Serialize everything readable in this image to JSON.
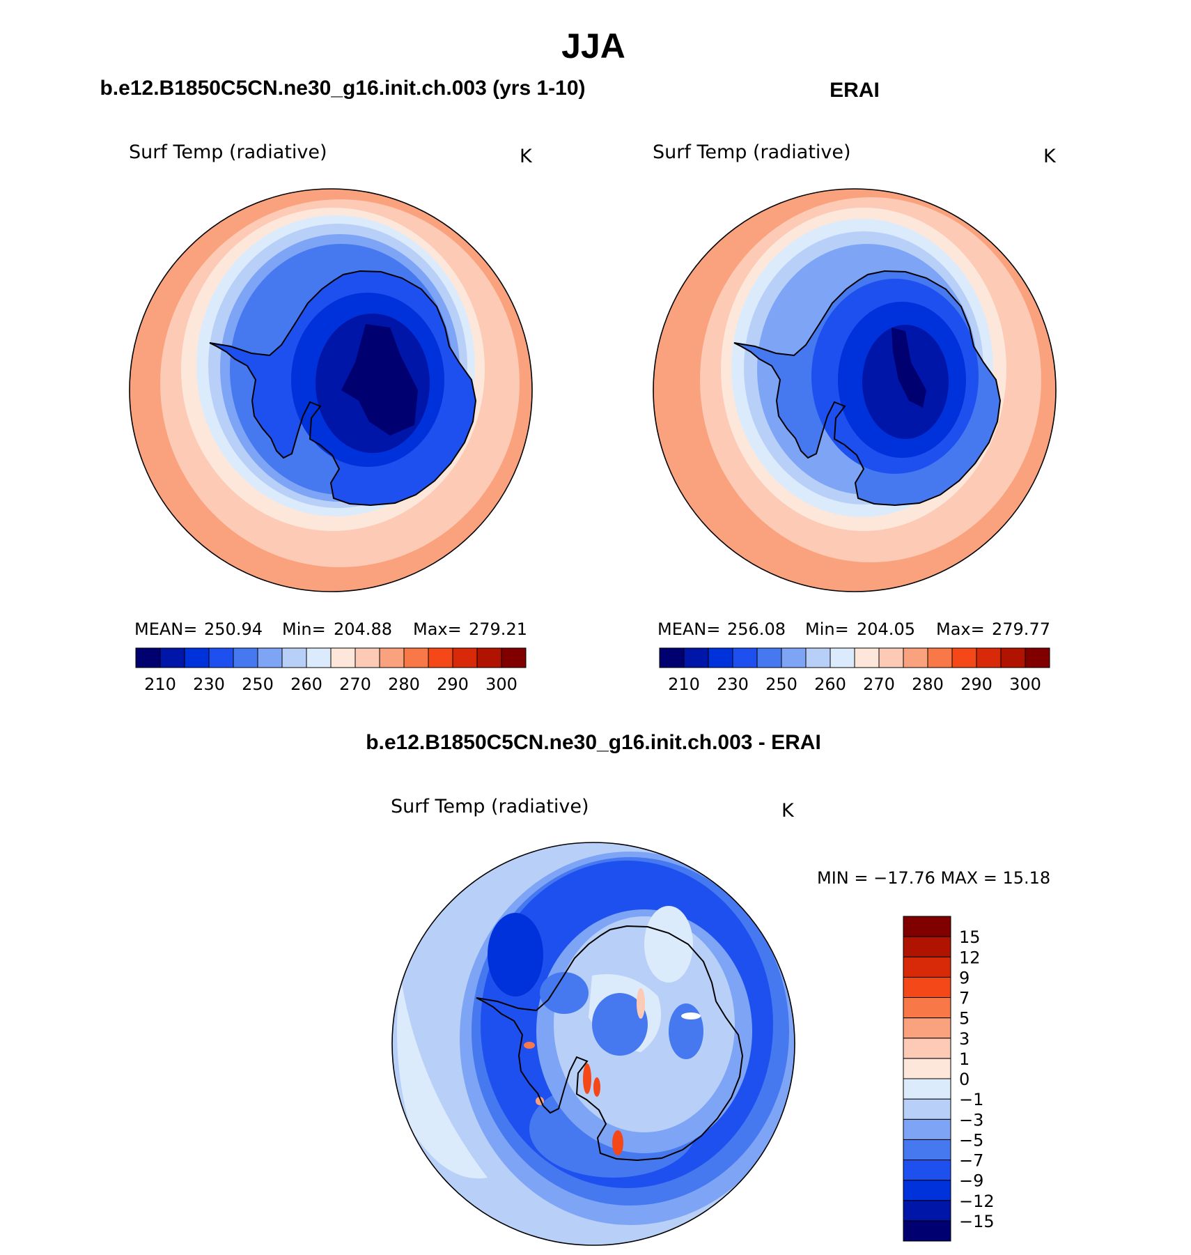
{
  "figure": {
    "season": "JJA",
    "panels": [
      {
        "id": "model",
        "title": "b.e12.B1850C5CN.ne30_g16.init.ch.003 (yrs 1-10)",
        "variable": "Surf Temp (radiative)",
        "units": "K",
        "stats": {
          "mean_label": "MEAN=",
          "mean": "250.94",
          "min_label": "Min=",
          "min": "204.88",
          "max_label": "Max=",
          "max": "279.21"
        }
      },
      {
        "id": "obs",
        "title": "ERAI",
        "variable": "Surf Temp (radiative)",
        "units": "K",
        "stats": {
          "mean_label": "MEAN=",
          "mean": "256.08",
          "min_label": "Min=",
          "min": "204.05",
          "max_label": "Max=",
          "max": "279.77"
        }
      }
    ],
    "difference": {
      "title": "b.e12.B1850C5CN.ne30_g16.init.ch.003 - ERAI",
      "variable": "Surf Temp (radiative)",
      "units": "K",
      "minmax_text": "MIN = −17.76 MAX =   15.18"
    }
  },
  "colorbars": {
    "abs": {
      "colors": [
        "#000070",
        "#0016a8",
        "#0032dc",
        "#1e50f0",
        "#4678f0",
        "#7ea4f5",
        "#b8d0f8",
        "#dcebfb",
        "#fde7da",
        "#fccab5",
        "#faa27e",
        "#f87848",
        "#f44818",
        "#d82a08",
        "#b01400",
        "#800000"
      ],
      "labels": [
        "210",
        "230",
        "250",
        "260",
        "270",
        "280",
        "290",
        "300"
      ]
    },
    "diff": {
      "colors": [
        "#000070",
        "#0016a8",
        "#0032dc",
        "#1e50f0",
        "#4678f0",
        "#7ea4f5",
        "#b8d0f8",
        "#dcebfb",
        "#fde7da",
        "#fccab5",
        "#faa27e",
        "#f87848",
        "#f44818",
        "#d82a08",
        "#b01400",
        "#800000"
      ],
      "labels": [
        "15",
        "12",
        "9",
        "7",
        "5",
        "3",
        "1",
        "0",
        "−1",
        "−3",
        "−5",
        "−7",
        "−9",
        "−12",
        "−15"
      ]
    }
  }
}
